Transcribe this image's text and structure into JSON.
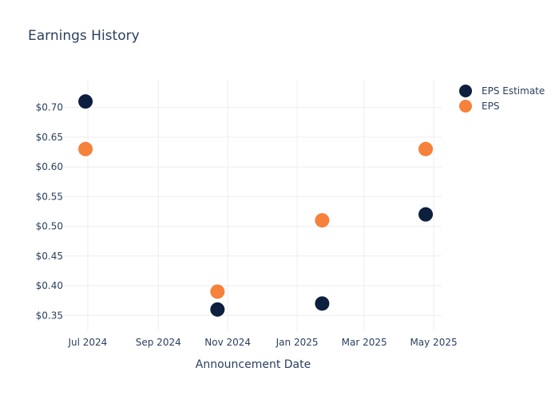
{
  "chart_data": {
    "type": "scatter",
    "title": "Earnings History",
    "xlabel": "Announcement Date",
    "ylabel": "",
    "x_ticks": [
      "2024-07-01",
      "2024-09-01",
      "2024-11-01",
      "2025-01-01",
      "2025-03-01",
      "2025-05-01"
    ],
    "x_tick_labels": [
      "Jul 2024",
      "Sep 2024",
      "Nov 2024",
      "Jan 2025",
      "Mar 2025",
      "May 2025"
    ],
    "xlim": [
      "2024-06-10",
      "2025-05-08"
    ],
    "y_ticks": [
      0.35,
      0.4,
      0.45,
      0.5,
      0.55,
      0.6,
      0.65,
      0.7
    ],
    "y_tick_labels": [
      "$0.35",
      "$0.40",
      "$0.45",
      "$0.50",
      "$0.55",
      "$0.60",
      "$0.65",
      "$0.70"
    ],
    "ylim": [
      0.3235,
      0.7465
    ],
    "grid": true,
    "legend_position": "top-right",
    "series": [
      {
        "name": "EPS Estimate",
        "color": "#0d1f3f",
        "points": [
          {
            "x": "2024-06-29",
            "y": 0.71
          },
          {
            "x": "2024-10-23",
            "y": 0.36
          },
          {
            "x": "2025-01-23",
            "y": 0.37
          },
          {
            "x": "2025-04-24",
            "y": 0.52
          }
        ]
      },
      {
        "name": "EPS",
        "color": "#f5813a",
        "points": [
          {
            "x": "2024-06-29",
            "y": 0.63
          },
          {
            "x": "2024-10-23",
            "y": 0.39
          },
          {
            "x": "2025-01-23",
            "y": 0.51
          },
          {
            "x": "2025-04-24",
            "y": 0.63
          }
        ]
      }
    ]
  }
}
